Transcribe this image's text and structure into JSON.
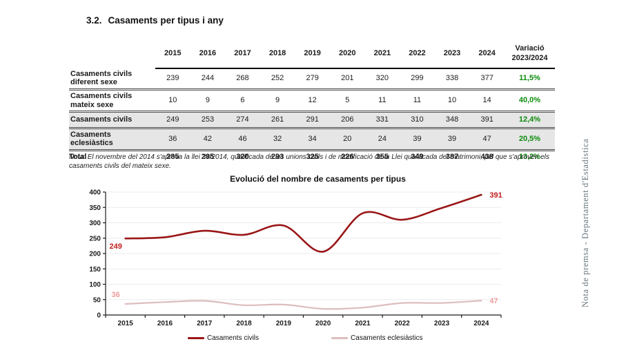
{
  "document": {
    "heading": {
      "number": "3.2.",
      "title": "Casaments per tipus i any"
    },
    "sidebar_vertical_text": "Nota de premsa - Departament d'Estadística",
    "note": {
      "label": "Nota:",
      "text": "El novembre del 2014 s'aprova la llei 34/2014, qualificada de les unions civils i de modificació de la Llei qualificada del matrimoni, pel que s'aproven els casaments civils del mateix sexe."
    }
  },
  "table": {
    "year_headers": [
      "2015",
      "2016",
      "2017",
      "2018",
      "2019",
      "2020",
      "2021",
      "2022",
      "2023",
      "2024"
    ],
    "variacio_header": "Variació\n2023/2024",
    "accent_green": "#0a8a0a",
    "shaded_row_bg": "#e6e6e6",
    "rows": [
      {
        "label": "Casaments civils diferent sexe",
        "values": [
          "239",
          "244",
          "268",
          "252",
          "279",
          "201",
          "320",
          "299",
          "338",
          "377"
        ],
        "variacio": "11,5%",
        "shaded": false,
        "total": false
      },
      {
        "label": "Casaments civils mateix sexe",
        "values": [
          "10",
          "9",
          "6",
          "9",
          "12",
          "5",
          "11",
          "11",
          "10",
          "14"
        ],
        "variacio": "40,0%",
        "shaded": false,
        "total": false
      },
      {
        "label": "Casaments civils",
        "values": [
          "249",
          "253",
          "274",
          "261",
          "291",
          "206",
          "331",
          "310",
          "348",
          "391"
        ],
        "variacio": "12,4%",
        "shaded": true,
        "total": false
      },
      {
        "label": "Casaments eclesiàstics",
        "values": [
          "36",
          "42",
          "46",
          "32",
          "34",
          "20",
          "24",
          "39",
          "39",
          "47"
        ],
        "variacio": "20,5%",
        "shaded": true,
        "total": false
      },
      {
        "label": "Total",
        "values": [
          "285",
          "295",
          "320",
          "293",
          "325",
          "226",
          "355",
          "349",
          "387",
          "438"
        ],
        "variacio": "13,2%",
        "shaded": false,
        "total": true
      }
    ]
  },
  "chart_data": {
    "type": "line",
    "title": "Evolució del nombre de casaments per tipus",
    "categories": [
      "2015",
      "2016",
      "2017",
      "2018",
      "2019",
      "2020",
      "2021",
      "2022",
      "2023",
      "2024"
    ],
    "ylim": [
      0,
      400
    ],
    "ytick_step": 50,
    "grid": true,
    "legend_position": "bottom",
    "axis_color": "#1a1a1a",
    "grid_color": "#ececec",
    "series": [
      {
        "name": "Casaments civils",
        "values": [
          249,
          253,
          274,
          261,
          291,
          206,
          331,
          310,
          348,
          391
        ],
        "color": "#9a1616",
        "label_color": "#c01d1d",
        "first_label": "249",
        "last_label": "391",
        "first_label_side": "below",
        "stroke_width": 2.6
      },
      {
        "name": "Casaments eclesiàstics",
        "values": [
          36,
          42,
          46,
          32,
          34,
          20,
          24,
          39,
          39,
          47
        ],
        "color": "#ddbdbd",
        "label_color": "#ef9b9b",
        "first_label": "36",
        "last_label": "47",
        "first_label_side": "above",
        "stroke_width": 2.2
      }
    ]
  }
}
